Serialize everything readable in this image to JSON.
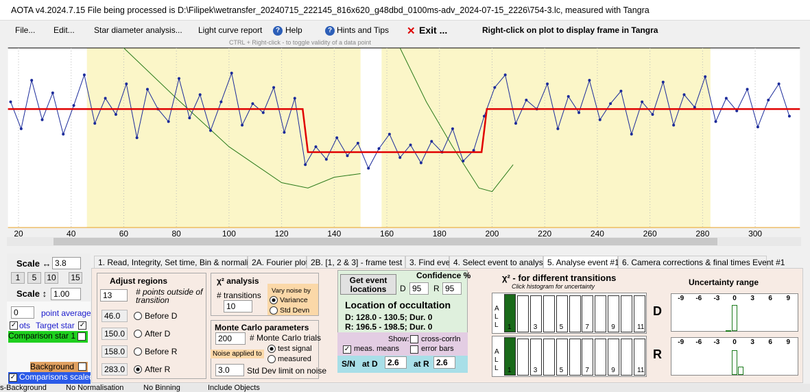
{
  "title_bar": "AOTA v4.2024.7.15    File being processed is D:\\Filipek\\wetransfer_20240715_222145_816x620_g48dbd_0100ms-adv_2024-07-15_2226\\754-3.lc, measured with Tangra",
  "menu": {
    "items": [
      "File...",
      "Edit...",
      "Star diameter analysis...",
      "Light curve report",
      "Help",
      "Hints and Tips",
      "Exit ..."
    ],
    "right_click_hint": "Right-click on plot to display frame in Tangra",
    "ctrl_hint": "CTRL + Right-click  -  to toggle validity of a data point"
  },
  "chart_data": {
    "type": "line",
    "xlim": [
      16,
      317
    ],
    "ylim": [
      0,
      1
    ],
    "xticks": [
      20,
      40,
      60,
      80,
      100,
      120,
      140,
      160,
      180,
      200,
      220,
      240,
      260,
      280,
      300
    ],
    "series": [
      {
        "color": "#1a2a9a",
        "markers": true,
        "x": [
          17,
          21,
          25,
          29,
          33,
          37,
          41,
          45,
          49,
          53,
          57,
          61,
          65,
          69,
          73,
          77,
          81,
          85,
          89,
          93,
          97,
          101,
          105,
          109,
          113,
          117,
          121,
          125,
          129,
          133,
          137,
          141,
          145,
          149,
          153,
          157,
          161,
          165,
          169,
          173,
          177,
          181,
          185,
          189,
          193,
          197,
          201,
          205,
          209,
          213,
          217,
          221,
          225,
          229,
          233,
          237,
          241,
          245,
          249,
          253,
          257,
          261,
          265,
          269,
          273,
          277,
          281,
          285,
          289,
          293,
          297,
          301,
          305,
          309,
          313
        ],
        "values": [
          0.7,
          0.55,
          0.82,
          0.6,
          0.75,
          0.52,
          0.68,
          0.85,
          0.58,
          0.72,
          0.63,
          0.8,
          0.5,
          0.77,
          0.66,
          0.59,
          0.83,
          0.61,
          0.74,
          0.54,
          0.7,
          0.86,
          0.57,
          0.69,
          0.64,
          0.78,
          0.53,
          0.72,
          0.35,
          0.45,
          0.38,
          0.5,
          0.4,
          0.47,
          0.33,
          0.44,
          0.52,
          0.39,
          0.46,
          0.36,
          0.48,
          0.42,
          0.55,
          0.37,
          0.43,
          0.62,
          0.78,
          0.85,
          0.58,
          0.71,
          0.66,
          0.8,
          0.55,
          0.73,
          0.64,
          0.82,
          0.6,
          0.69,
          0.76,
          0.52,
          0.7,
          0.63,
          0.81,
          0.57,
          0.74,
          0.67,
          0.84,
          0.59,
          0.72,
          0.65,
          0.77,
          0.56,
          0.71,
          0.8,
          0.62
        ]
      },
      {
        "color": "#e00000",
        "markers": false,
        "x": [
          16,
          128,
          130,
          196,
          198,
          317
        ],
        "values": [
          0.66,
          0.66,
          0.42,
          0.42,
          0.66,
          0.66
        ]
      },
      {
        "color": "#2a7a1a",
        "markers": false,
        "x": [
          60,
          80,
          100,
          120,
          130,
          140,
          150,
          157,
          165,
          175,
          185,
          195,
          200,
          208
        ],
        "values": [
          1.0,
          0.72,
          0.45,
          0.25,
          0.22,
          0.28,
          0.3,
          null,
          1.0,
          0.7,
          0.45,
          0.22,
          0.2,
          0.35
        ]
      }
    ]
  },
  "side_panel": {
    "scale_h": "Scale ↔",
    "scale_h_value": "3.8",
    "buttons": [
      "1",
      "5",
      "10",
      "15"
    ],
    "scale_v": "Scale ↕",
    "scale_v_value": "1.00",
    "average": "0",
    "point_average": "point average",
    "ots": "ots",
    "target_star": "Target star",
    "comparison_star": "Comparison star 1",
    "background": "Background",
    "comparisons_scaled": "Comparisons scaled"
  },
  "tabs": [
    "1. Read, Integrity, Set time, Bin & normalise",
    "2A. Fourier plot",
    "2B. [1, 2 & 3] - frame test",
    "3. Find events",
    "4. Select event to analyse",
    "5. Analyse event #1",
    "6. Camera corrections & final times Event #1"
  ],
  "adjust_regions": {
    "title": "Adjust regions",
    "points": "13",
    "points_label": "# points outside of transition",
    "rows": [
      {
        "value": "46.0",
        "label": "Before D"
      },
      {
        "value": "150.0",
        "label": "After D"
      },
      {
        "value": "158.0",
        "label": "Before R"
      },
      {
        "value": "283.0",
        "label": "After R"
      }
    ]
  },
  "chi2_analysis": {
    "title": "χ² analysis",
    "transitions_label": "# transitions",
    "transitions": "10",
    "vary_noise": "Vary noise by",
    "options": [
      "Variance",
      "Std Devn"
    ]
  },
  "monte_carlo": {
    "title": "Monte Carlo parameters",
    "trials": "200",
    "trials_label": "# Monte Carlo trials",
    "noise_applied": "Noise applied to",
    "options": [
      "test signal",
      "measured"
    ],
    "std_limit": "3.0",
    "std_limit_label": "Std Dev limit on noise"
  },
  "event_panel": {
    "button": "Get event locations",
    "confidence": "Confidence %",
    "d": "D",
    "d_value": "95",
    "r": "R",
    "r_value": "95",
    "location_title": "Location of occultation",
    "d_line": "D: 128.0 - 130.5; Dur. 0",
    "r_line": "R: 196.5 - 198.5; Dur. 0",
    "show": "Show:",
    "cross_corr": "cross-corrln",
    "meas_means": "meas. means",
    "error_bars": "error bars",
    "sn": "S/N",
    "at_d": "at D",
    "sn_d": "2.6",
    "at_r": "at R",
    "sn_r": "2.6"
  },
  "chi2_histogram": {
    "title": "χ² - for different transitions",
    "hint": "Click histogram for uncertainty",
    "side": [
      "A",
      "L",
      "L"
    ],
    "numbers": [
      "1",
      "3",
      "5",
      "7",
      "9",
      "11"
    ],
    "d_label": "D",
    "r_label": "R",
    "d_values": [
      1,
      0.97,
      0.97,
      0.97,
      0.97,
      0.97,
      0.97,
      0.97,
      0.97,
      0.97,
      0.97
    ],
    "r_values": [
      1,
      0.97,
      0.97,
      0.97,
      0.97,
      0.97,
      0.97,
      0.97,
      0.97,
      0.97,
      0.97
    ]
  },
  "uncertainty": {
    "title": "Uncertainty range",
    "ticks": [
      -9,
      -6,
      -3,
      0,
      3,
      6,
      9
    ],
    "d_x": [
      -1,
      0
    ],
    "d_values": [
      0.03,
      0.95
    ],
    "r_x": [
      0,
      1
    ],
    "r_values": [
      0.9,
      0.3
    ]
  },
  "status_bar": [
    "s-Background",
    "No Normalisation",
    "No Binning",
    "Include Objects"
  ]
}
